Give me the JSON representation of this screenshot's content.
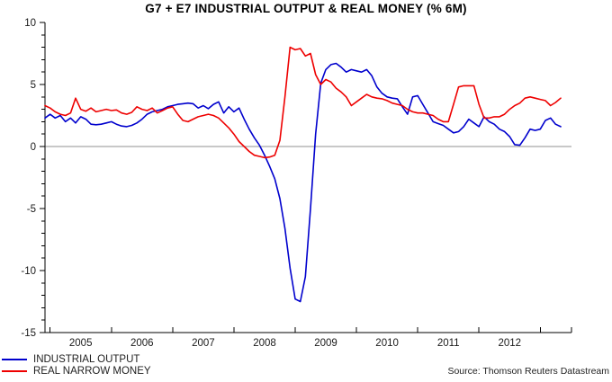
{
  "title": "G7 + E7 INDUSTRIAL OUTPUT & REAL MONEY (% 6M)",
  "source": "Source: Thomson Reuters Datastream",
  "colors": {
    "industrial_output": "#0000cd",
    "real_narrow_money": "#ee0000",
    "zero_line": "#909090",
    "axis": "#000000"
  },
  "legend": [
    {
      "label": "INDUSTRIAL OUTPUT",
      "color": "#0000cd"
    },
    {
      "label": "REAL NARROW MONEY",
      "color": "#ee0000"
    }
  ],
  "chart_data": {
    "type": "line",
    "title": "G7 + E7 INDUSTRIAL OUTPUT & REAL MONEY (% 6M)",
    "x_start": "2004-12",
    "frequency": "monthly",
    "xtick_labels": [
      "2005",
      "2006",
      "2007",
      "2008",
      "2009",
      "2010",
      "2011",
      "2012"
    ],
    "ytick_labels": [
      "10",
      "5",
      "0",
      "-5",
      "-10",
      "-15"
    ],
    "ylim": [
      -15,
      10
    ],
    "y_major_step": 5,
    "y_minor_step": 1,
    "zero_line": true,
    "grid": false,
    "legend_position": "bottom-left",
    "source": "Source: Thomson Reuters Datastream",
    "series": [
      {
        "name": "INDUSTRIAL OUTPUT",
        "color": "#0000cd",
        "values": [
          2.3,
          2.6,
          2.3,
          2.5,
          2.0,
          2.3,
          1.9,
          2.4,
          2.2,
          1.8,
          1.75,
          1.8,
          1.9,
          2.0,
          1.8,
          1.65,
          1.6,
          1.7,
          1.9,
          2.2,
          2.6,
          2.8,
          2.9,
          3.0,
          3.2,
          3.3,
          3.4,
          3.45,
          3.5,
          3.45,
          3.1,
          3.3,
          3.05,
          3.4,
          3.6,
          2.7,
          3.2,
          2.8,
          3.1,
          2.2,
          1.4,
          0.7,
          0.1,
          -0.7,
          -1.6,
          -2.6,
          -4.2,
          -6.6,
          -9.8,
          -12.3,
          -12.5,
          -10.5,
          -5.0,
          1.0,
          5.1,
          6.2,
          6.6,
          6.7,
          6.4,
          6.0,
          6.2,
          6.1,
          6.0,
          6.2,
          5.7,
          4.8,
          4.3,
          4.0,
          3.9,
          3.85,
          3.2,
          2.6,
          4.0,
          4.1,
          3.4,
          2.7,
          2.0,
          1.85,
          1.7,
          1.4,
          1.1,
          1.2,
          1.6,
          2.2,
          1.9,
          1.6,
          2.4,
          2.0,
          1.8,
          1.4,
          1.2,
          0.8,
          0.15,
          0.1,
          0.7,
          1.4,
          1.3,
          1.4,
          2.1,
          2.3,
          1.8,
          1.6
        ]
      },
      {
        "name": "REAL NARROW MONEY",
        "color": "#ee0000",
        "values": [
          3.3,
          3.1,
          2.8,
          2.6,
          2.5,
          2.7,
          3.9,
          3.0,
          2.85,
          3.1,
          2.8,
          2.9,
          3.0,
          2.9,
          2.95,
          2.7,
          2.6,
          2.75,
          3.2,
          3.0,
          2.9,
          3.1,
          2.7,
          2.9,
          3.1,
          3.2,
          2.6,
          2.1,
          2.0,
          2.2,
          2.4,
          2.5,
          2.6,
          2.5,
          2.3,
          1.9,
          1.5,
          1.0,
          0.4,
          0.0,
          -0.4,
          -0.7,
          -0.8,
          -0.9,
          -0.85,
          -0.7,
          0.5,
          4.0,
          8.0,
          7.8,
          7.9,
          7.3,
          7.5,
          5.8,
          5.0,
          5.4,
          5.2,
          4.7,
          4.4,
          4.0,
          3.3,
          3.6,
          3.9,
          4.2,
          4.0,
          3.9,
          3.85,
          3.7,
          3.5,
          3.4,
          3.3,
          3.0,
          2.8,
          2.7,
          2.7,
          2.6,
          2.5,
          2.2,
          2.0,
          2.0,
          3.4,
          4.8,
          4.9,
          4.9,
          4.9,
          3.4,
          2.3,
          2.3,
          2.4,
          2.4,
          2.6,
          3.0,
          3.3,
          3.5,
          3.9,
          4.0,
          3.9,
          3.8,
          3.7,
          3.3,
          3.55,
          3.9
        ]
      }
    ]
  }
}
